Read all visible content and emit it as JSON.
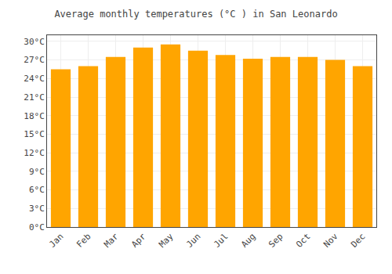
{
  "chart_data": {
    "type": "bar",
    "title": "Average monthly temperatures (°C ) in San Leonardo",
    "categories": [
      "Jan",
      "Feb",
      "Mar",
      "Apr",
      "May",
      "Jun",
      "Jul",
      "Aug",
      "Sep",
      "Oct",
      "Nov",
      "Dec"
    ],
    "values": [
      25.5,
      26.0,
      27.5,
      29.0,
      29.5,
      28.5,
      27.8,
      27.2,
      27.5,
      27.5,
      27.0,
      26.0
    ],
    "color": "#FFA500",
    "ylim": [
      0,
      31
    ],
    "yticks": [
      {
        "value": 0,
        "label": "0°C"
      },
      {
        "value": 3,
        "label": "3°C"
      },
      {
        "value": 6,
        "label": "6°C"
      },
      {
        "value": 9,
        "label": "9°C"
      },
      {
        "value": 12,
        "label": "12°C"
      },
      {
        "value": 15,
        "label": "15°C"
      },
      {
        "value": 18,
        "label": "18°C"
      },
      {
        "value": 21,
        "label": "21°C"
      },
      {
        "value": 24,
        "label": "24°C"
      },
      {
        "value": 27,
        "label": "27°C"
      },
      {
        "value": 30,
        "label": "30°C"
      }
    ],
    "grid": true
  }
}
